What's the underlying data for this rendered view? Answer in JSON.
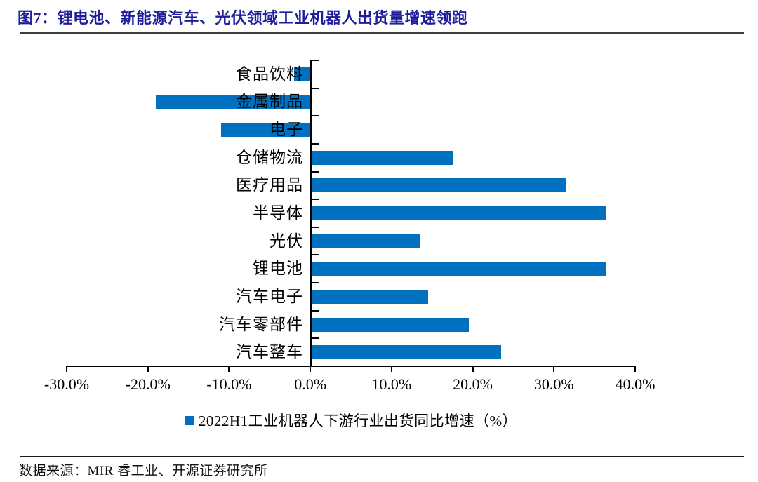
{
  "figure": {
    "title": "图7：锂电池、新能源汽车、光伏领域工业机器人出货量增速领跑",
    "source": "数据来源：MIR 睿工业、开源证券研究所"
  },
  "colors": {
    "bar": "#0070C0",
    "title": "#1E1E9C",
    "title_rule": "#3D3D3D",
    "thin_rule": "#1A1A1A",
    "axis": "#000000"
  },
  "chart_data": {
    "type": "bar",
    "orientation": "horizontal",
    "title": "",
    "categories": [
      "食品饮料",
      "金属制品",
      "电子",
      "仓储物流",
      "医疗用品",
      "半导体",
      "光伏",
      "锂电池",
      "汽车电子",
      "汽车零部件",
      "汽车整车"
    ],
    "values": [
      -2.0,
      -19.0,
      -11.0,
      17.5,
      31.5,
      36.5,
      13.5,
      36.5,
      14.5,
      19.5,
      23.5
    ],
    "unit": "%",
    "legend": [
      "2022H1工业机器人下游行业出货同比增速（%）"
    ],
    "legend_position": "bottom",
    "x_axis": {
      "tick_labels": [
        "-30.0%",
        "-20.0%",
        "-10.0%",
        "0.0%",
        "10.0%",
        "20.0%",
        "30.0%",
        "40.0%"
      ],
      "min": -30,
      "max": 40,
      "step": 10
    },
    "grid": false
  }
}
